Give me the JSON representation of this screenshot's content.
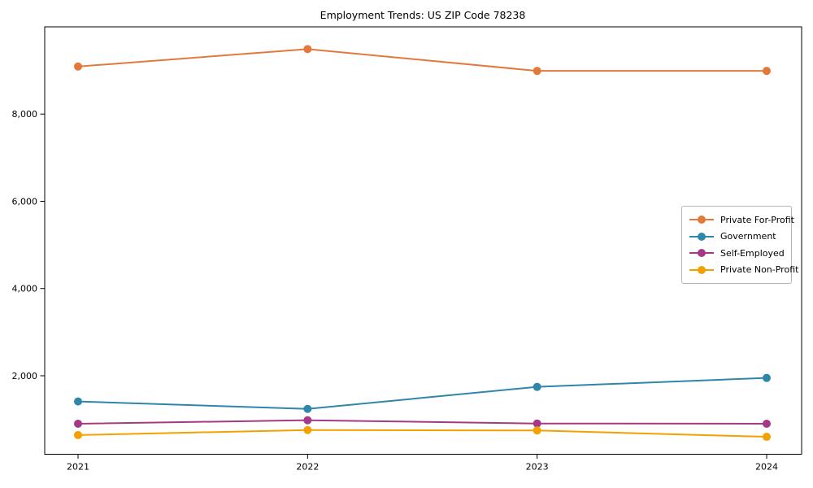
{
  "chart_data": {
    "type": "line",
    "title": "Employment Trends: US ZIP Code 78238",
    "categories": [
      "2021",
      "2022",
      "2023",
      "2024"
    ],
    "series": [
      {
        "name": "Private For-Profit",
        "color": "#E2793B",
        "values": [
          9090,
          9490,
          8990,
          8990
        ]
      },
      {
        "name": "Government",
        "color": "#2E87A8",
        "values": [
          1410,
          1240,
          1745,
          1950
        ]
      },
      {
        "name": "Self-Employed",
        "color": "#A43A87",
        "values": [
          900,
          980,
          905,
          900
        ]
      },
      {
        "name": "Private Non-Profit",
        "color": "#F4A100",
        "values": [
          640,
          755,
          745,
          600
        ]
      }
    ],
    "xlabel": "",
    "ylabel": "",
    "ylim": [
      200,
      10000
    ],
    "yticks": [
      2000,
      4000,
      6000,
      8000
    ],
    "ytick_labels": [
      "2,000",
      "4,000",
      "6,000",
      "8,000"
    ],
    "grid": false,
    "legend_position": "center right",
    "axis_color": "#000000",
    "background_color": "#ffffff"
  }
}
